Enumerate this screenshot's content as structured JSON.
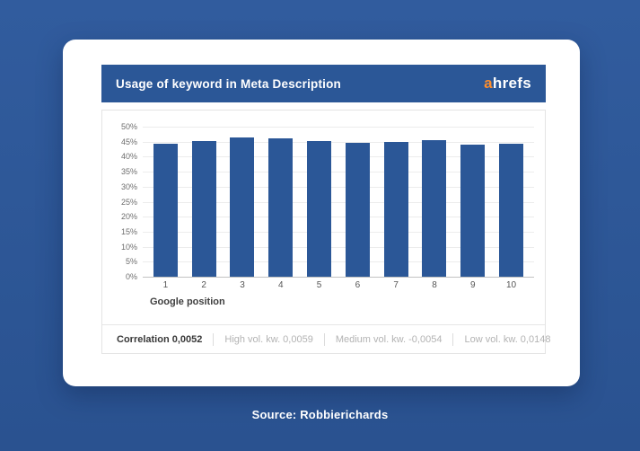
{
  "page": {
    "source_label": "Source: Robbierichards"
  },
  "card": {
    "header": {
      "title": "Usage of keyword in Meta Description",
      "logo_prefix": "a",
      "logo_rest": "hrefs"
    },
    "footer": {
      "correlation_label": "Correlation 0,0052",
      "items": [
        "High vol. kw. 0,0059",
        "Medium vol. kw. -0,0054",
        "Low vol. kw. 0,0148"
      ]
    }
  },
  "chart_data": {
    "type": "bar",
    "title": "Usage of keyword in Meta Description",
    "categories": [
      "1",
      "2",
      "3",
      "4",
      "5",
      "6",
      "7",
      "8",
      "9",
      "10"
    ],
    "values": [
      44.3,
      45.2,
      46.3,
      46.1,
      45.3,
      44.6,
      44.9,
      45.4,
      44.1,
      44.4
    ],
    "xlabel": "Google position",
    "ylabel": "",
    "ylim": [
      0,
      50
    ],
    "ytick_labels": [
      "0%",
      "5%",
      "10%",
      "15%",
      "20%",
      "25%",
      "30%",
      "35%",
      "40%",
      "45%",
      "50%"
    ],
    "grid": true,
    "legend": false,
    "bar_color": "#2b5797",
    "correlations": {
      "overall": "0,0052",
      "high_volume_keywords": "0,0059",
      "medium_volume_keywords": "-0,0054",
      "low_volume_keywords": "0,0148"
    }
  },
  "colors": {
    "page_background": "#2d5897",
    "header_background": "#2b5797",
    "bar": "#2b5797",
    "logo_accent": "#fd8e2d",
    "muted_text": "#b3b3b3"
  }
}
